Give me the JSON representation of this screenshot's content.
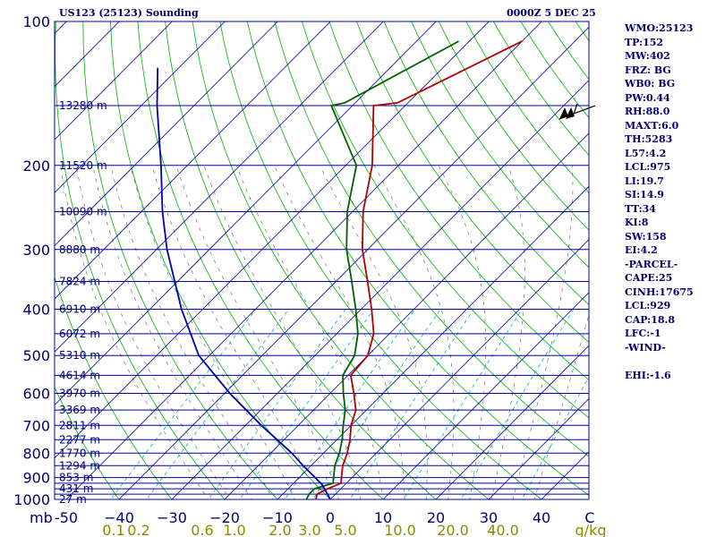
{
  "header": {
    "station": "US123 (25123) Sounding",
    "time": "0000Z  5 DEC 25"
  },
  "stats": [
    "WMO:25123",
    "TP:152",
    "MW:402",
    "FRZ: BG",
    "WB0: BG",
    "PW:0.44",
    "RH:88.0",
    "MAXT:6.0",
    "TH:5283",
    "L57:4.2",
    "LCL:975",
    "LI:19.7",
    "SI:14.9",
    "TT:34",
    "KI:8",
    "SW:158",
    "EI:4.2",
    "-PARCEL-",
    "CAPE:25",
    "CINH:17675",
    "LCL:929",
    "CAP:18.8",
    "LFC:-1",
    "-WIND-",
    "",
    "EHI:-1.6"
  ],
  "colors": {
    "axis": "#0000a0",
    "isobar": "#0000a0",
    "isotherm": "#0000a0",
    "dry_adiabat": "#00b000",
    "mixing_ratio": "#00b0b0",
    "moist_adiabat": "#707070",
    "temperature": "#b00000",
    "dewpoint": "#006000",
    "parcel": "#0000b0",
    "mixing_label": "#8b8b00",
    "text": "#00006e"
  },
  "chart_data": {
    "type": "line",
    "title": "US123 (25123) Sounding",
    "xlabel": "C",
    "ylabel": "mb",
    "x_ticks": [
      -50,
      -40,
      -30,
      -20,
      -10,
      0,
      10,
      20,
      30,
      40
    ],
    "x_tick_labels": [
      "-50",
      "−40",
      "−30",
      "−20",
      "−10",
      "0",
      "10",
      "20",
      "30",
      "40"
    ],
    "x_unit_label": "C",
    "y_unit_label": "mb",
    "pressure_labels": [
      100,
      200,
      300,
      400,
      500,
      600,
      700,
      800,
      900,
      1000
    ],
    "isobars": [
      100,
      150,
      200,
      250,
      300,
      350,
      400,
      450,
      500,
      550,
      600,
      650,
      700,
      750,
      800,
      850,
      900,
      925,
      950,
      975,
      1000
    ],
    "mixing_ratio_labels": [
      "0.1",
      "0.2",
      "0.6",
      "1.0",
      "2.0",
      "3.0",
      "5.0",
      "10.0",
      "20.0",
      "40.0",
      "g/kg"
    ],
    "mixing_ratio_values": [
      0.1,
      0.2,
      0.6,
      1.0,
      2.0,
      3.0,
      5.0,
      10.0,
      20.0,
      40.0
    ],
    "height_labels": [
      {
        "p": 150,
        "h": "13280 m"
      },
      {
        "p": 200,
        "h": "11520 m"
      },
      {
        "p": 250,
        "h": "10090 m"
      },
      {
        "p": 300,
        "h": "8880 m"
      },
      {
        "p": 350,
        "h": "7824 m"
      },
      {
        "p": 400,
        "h": "6910 m"
      },
      {
        "p": 450,
        "h": "6072 m"
      },
      {
        "p": 500,
        "h": "5310 m"
      },
      {
        "p": 550,
        "h": "4614 m"
      },
      {
        "p": 600,
        "h": "3970 m"
      },
      {
        "p": 650,
        "h": "3369 m"
      },
      {
        "p": 700,
        "h": "2811 m"
      },
      {
        "p": 750,
        "h": "2277 m"
      },
      {
        "p": 800,
        "h": "1770 m"
      },
      {
        "p": 850,
        "h": "1294 m"
      },
      {
        "p": 900,
        "h": "853 m"
      },
      {
        "p": 950,
        "h": "431 m"
      },
      {
        "p": 1000,
        "h": "27 m"
      }
    ],
    "series": [
      {
        "name": "temperature",
        "points": [
          {
            "p": 1000,
            "t": -2.7
          },
          {
            "p": 975,
            "t": -3.5
          },
          {
            "p": 950,
            "t": -2.5
          },
          {
            "p": 925,
            "t": -1.0
          },
          {
            "p": 900,
            "t": -2.0
          },
          {
            "p": 850,
            "t": -4.0
          },
          {
            "p": 800,
            "t": -5.5
          },
          {
            "p": 750,
            "t": -7.5
          },
          {
            "p": 700,
            "t": -10.0
          },
          {
            "p": 650,
            "t": -12.0
          },
          {
            "p": 600,
            "t": -15.5
          },
          {
            "p": 550,
            "t": -19.5
          },
          {
            "p": 500,
            "t": -20.0
          },
          {
            "p": 450,
            "t": -23.0
          },
          {
            "p": 400,
            "t": -28.0
          },
          {
            "p": 350,
            "t": -34.0
          },
          {
            "p": 300,
            "t": -41.0
          },
          {
            "p": 250,
            "t": -48.0
          },
          {
            "p": 200,
            "t": -55.0
          },
          {
            "p": 150,
            "t": -66.0
          },
          {
            "p": 148,
            "t": -62.0
          },
          {
            "p": 110,
            "t": -50.0
          }
        ]
      },
      {
        "name": "dewpoint",
        "points": [
          {
            "p": 1000,
            "t": -4.5
          },
          {
            "p": 975,
            "t": -5.0
          },
          {
            "p": 950,
            "t": -5.0
          },
          {
            "p": 925,
            "t": -2.5
          },
          {
            "p": 900,
            "t": -3.5
          },
          {
            "p": 850,
            "t": -5.5
          },
          {
            "p": 800,
            "t": -7.0
          },
          {
            "p": 750,
            "t": -9.0
          },
          {
            "p": 700,
            "t": -11.5
          },
          {
            "p": 650,
            "t": -14.0
          },
          {
            "p": 600,
            "t": -17.5
          },
          {
            "p": 550,
            "t": -21.0
          },
          {
            "p": 500,
            "t": -22.5
          },
          {
            "p": 450,
            "t": -26.0
          },
          {
            "p": 400,
            "t": -31.0
          },
          {
            "p": 350,
            "t": -37.0
          },
          {
            "p": 300,
            "t": -44.0
          },
          {
            "p": 250,
            "t": -51.0
          },
          {
            "p": 200,
            "t": -58.0
          },
          {
            "p": 150,
            "t": -74.0
          },
          {
            "p": 148,
            "t": -72.0
          },
          {
            "p": 110,
            "t": -62.0
          }
        ]
      },
      {
        "name": "parcel",
        "points": [
          {
            "p": 1000,
            "t": 0
          },
          {
            "p": 975,
            "t": -1.5
          },
          {
            "p": 929,
            "t": -4.5
          },
          {
            "p": 850,
            "t": -11.5
          },
          {
            "p": 800,
            "t": -16.0
          },
          {
            "p": 700,
            "t": -27.0
          },
          {
            "p": 600,
            "t": -39.0
          },
          {
            "p": 500,
            "t": -52.0
          },
          {
            "p": 400,
            "t": -64.0
          },
          {
            "p": 300,
            "t": -78.0
          },
          {
            "p": 250,
            "t": -86.0
          },
          {
            "p": 200,
            "t": -95.0
          },
          {
            "p": 150,
            "t": -107.0
          },
          {
            "p": 125,
            "t": -114.0
          }
        ]
      }
    ],
    "wind": [
      {
        "p": 150,
        "dir": 250,
        "speed_kt": 105
      }
    ]
  }
}
